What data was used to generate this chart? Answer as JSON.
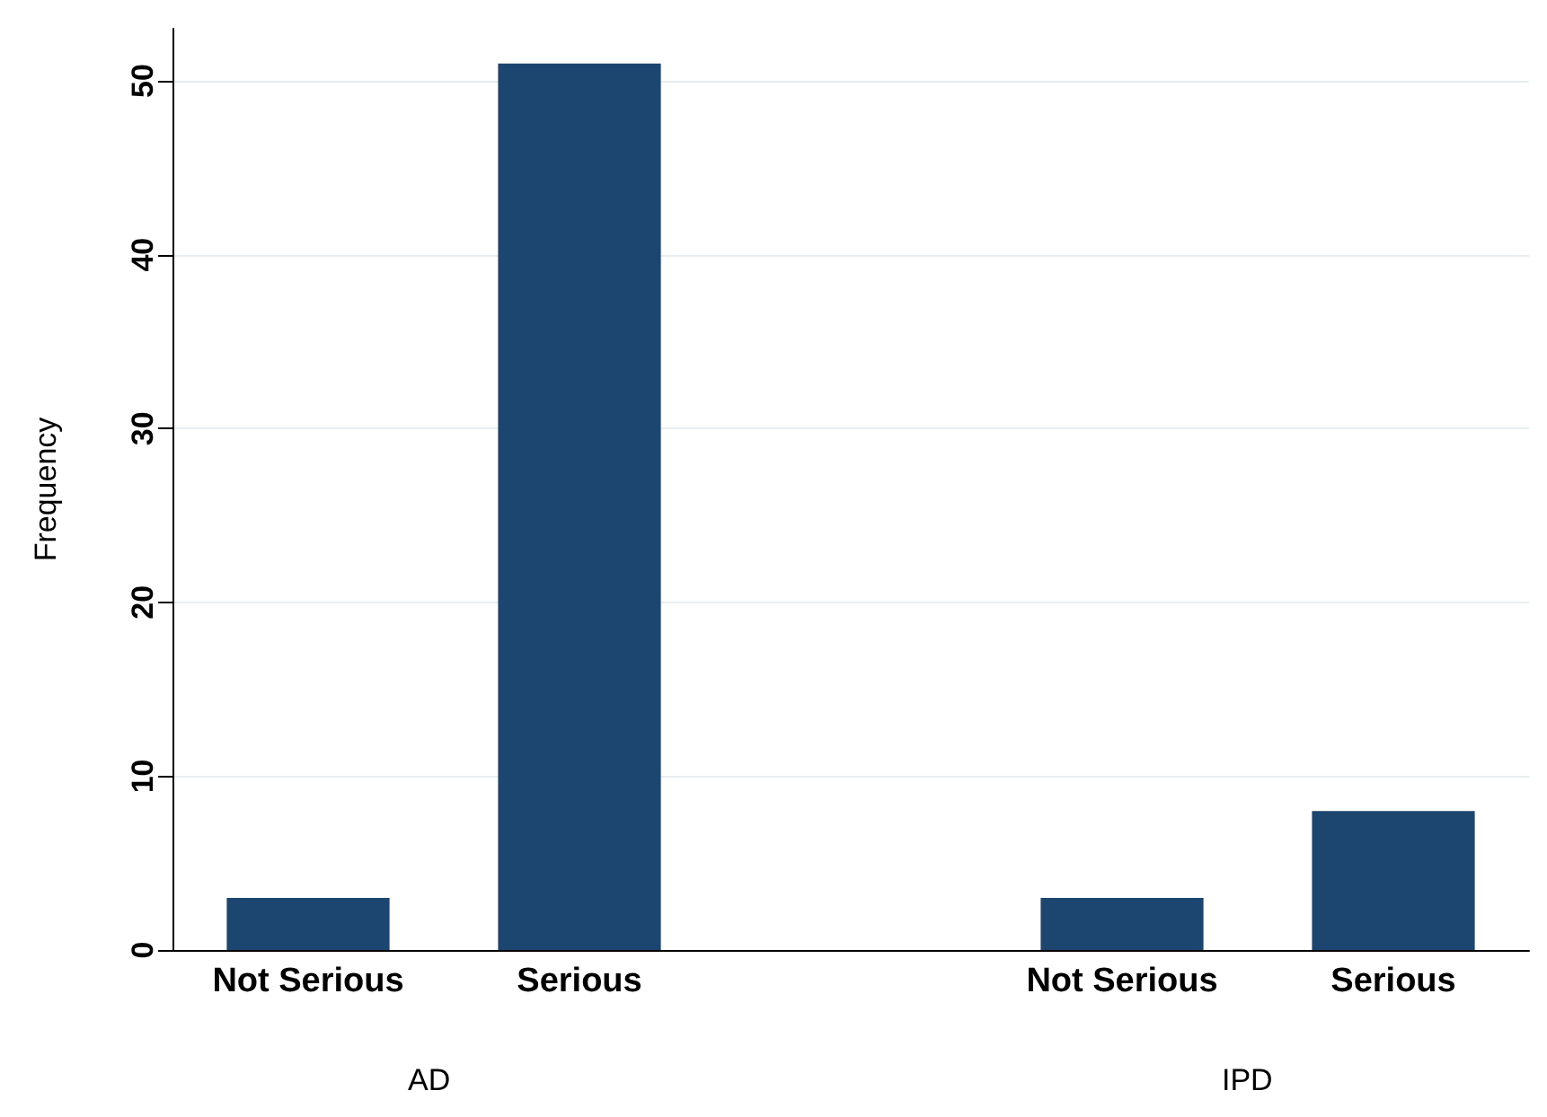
{
  "chart_data": {
    "type": "bar",
    "ylabel": "Frequency",
    "categories": [
      "Not Serious",
      "Serious",
      null,
      "Not Serious",
      "Serious"
    ],
    "values": [
      3,
      51,
      null,
      3,
      8
    ],
    "color": "#1c4670",
    "ylim": [
      0,
      53
    ],
    "yticks": [
      0,
      10,
      20,
      30,
      40,
      50
    ],
    "grid": "y",
    "annotations": [
      "AD",
      "IPD"
    ]
  }
}
